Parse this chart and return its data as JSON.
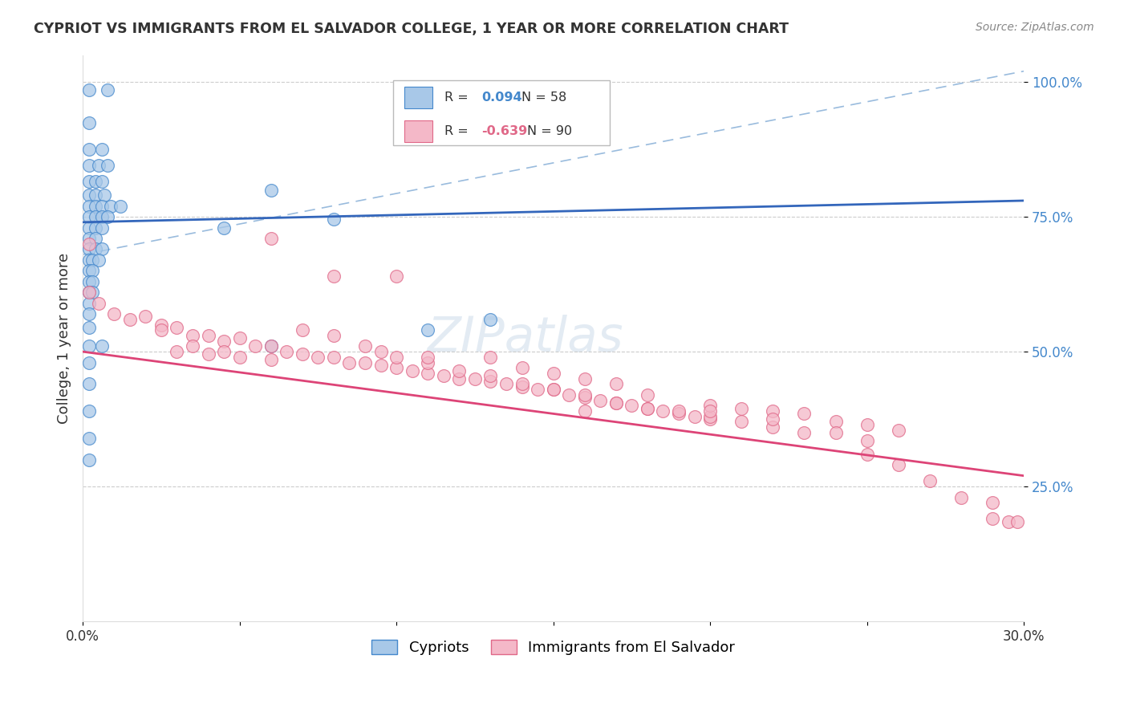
{
  "title": "CYPRIOT VS IMMIGRANTS FROM EL SALVADOR COLLEGE, 1 YEAR OR MORE CORRELATION CHART",
  "source_text": "Source: ZipAtlas.com",
  "ylabel": "College, 1 year or more",
  "legend_label1": "Cypriots",
  "legend_label2": "Immigrants from El Salvador",
  "r1": 0.094,
  "n1": 58,
  "r2": -0.639,
  "n2": 90,
  "xlim": [
    0.0,
    0.3
  ],
  "ylim": [
    0.0,
    1.05
  ],
  "yticks": [
    0.25,
    0.5,
    0.75,
    1.0
  ],
  "ytick_labels": [
    "25.0%",
    "50.0%",
    "75.0%",
    "100.0%"
  ],
  "xticks": [
    0.0,
    0.05,
    0.1,
    0.15,
    0.2,
    0.25,
    0.3
  ],
  "xtick_labels": [
    "0.0%",
    "",
    "",
    "",
    "",
    "",
    "30.0%"
  ],
  "color_blue": "#a8c8e8",
  "color_pink": "#f4b8c8",
  "edge_blue": "#4488cc",
  "edge_pink": "#e06888",
  "line_blue": "#3366bb",
  "line_pink": "#dd4477",
  "line_dashed_color": "#99bbdd",
  "ytick_color": "#4488cc",
  "watermark": "ZIPatlas",
  "blue_points": [
    [
      0.002,
      0.985
    ],
    [
      0.008,
      0.985
    ],
    [
      0.002,
      0.925
    ],
    [
      0.002,
      0.875
    ],
    [
      0.006,
      0.875
    ],
    [
      0.002,
      0.845
    ],
    [
      0.005,
      0.845
    ],
    [
      0.008,
      0.845
    ],
    [
      0.002,
      0.815
    ],
    [
      0.004,
      0.815
    ],
    [
      0.006,
      0.815
    ],
    [
      0.002,
      0.79
    ],
    [
      0.004,
      0.79
    ],
    [
      0.007,
      0.79
    ],
    [
      0.002,
      0.77
    ],
    [
      0.004,
      0.77
    ],
    [
      0.006,
      0.77
    ],
    [
      0.009,
      0.77
    ],
    [
      0.012,
      0.77
    ],
    [
      0.002,
      0.75
    ],
    [
      0.004,
      0.75
    ],
    [
      0.006,
      0.75
    ],
    [
      0.008,
      0.75
    ],
    [
      0.002,
      0.73
    ],
    [
      0.004,
      0.73
    ],
    [
      0.006,
      0.73
    ],
    [
      0.002,
      0.71
    ],
    [
      0.004,
      0.71
    ],
    [
      0.002,
      0.69
    ],
    [
      0.004,
      0.69
    ],
    [
      0.006,
      0.69
    ],
    [
      0.002,
      0.67
    ],
    [
      0.003,
      0.67
    ],
    [
      0.005,
      0.67
    ],
    [
      0.002,
      0.65
    ],
    [
      0.003,
      0.65
    ],
    [
      0.002,
      0.63
    ],
    [
      0.003,
      0.63
    ],
    [
      0.002,
      0.61
    ],
    [
      0.003,
      0.61
    ],
    [
      0.002,
      0.59
    ],
    [
      0.002,
      0.57
    ],
    [
      0.002,
      0.545
    ],
    [
      0.002,
      0.51
    ],
    [
      0.006,
      0.51
    ],
    [
      0.002,
      0.48
    ],
    [
      0.002,
      0.44
    ],
    [
      0.002,
      0.39
    ],
    [
      0.002,
      0.34
    ],
    [
      0.06,
      0.8
    ],
    [
      0.08,
      0.745
    ],
    [
      0.045,
      0.73
    ],
    [
      0.06,
      0.51
    ],
    [
      0.11,
      0.54
    ],
    [
      0.13,
      0.56
    ],
    [
      0.002,
      0.3
    ]
  ],
  "pink_points": [
    [
      0.002,
      0.7
    ],
    [
      0.002,
      0.61
    ],
    [
      0.005,
      0.59
    ],
    [
      0.01,
      0.57
    ],
    [
      0.015,
      0.56
    ],
    [
      0.02,
      0.565
    ],
    [
      0.025,
      0.55
    ],
    [
      0.03,
      0.545
    ],
    [
      0.035,
      0.53
    ],
    [
      0.04,
      0.53
    ],
    [
      0.045,
      0.52
    ],
    [
      0.05,
      0.525
    ],
    [
      0.055,
      0.51
    ],
    [
      0.06,
      0.51
    ],
    [
      0.065,
      0.5
    ],
    [
      0.07,
      0.495
    ],
    [
      0.075,
      0.49
    ],
    [
      0.08,
      0.49
    ],
    [
      0.085,
      0.48
    ],
    [
      0.09,
      0.48
    ],
    [
      0.095,
      0.475
    ],
    [
      0.1,
      0.47
    ],
    [
      0.105,
      0.465
    ],
    [
      0.11,
      0.46
    ],
    [
      0.115,
      0.455
    ],
    [
      0.12,
      0.45
    ],
    [
      0.125,
      0.45
    ],
    [
      0.13,
      0.445
    ],
    [
      0.135,
      0.44
    ],
    [
      0.14,
      0.435
    ],
    [
      0.145,
      0.43
    ],
    [
      0.15,
      0.43
    ],
    [
      0.155,
      0.42
    ],
    [
      0.16,
      0.415
    ],
    [
      0.165,
      0.41
    ],
    [
      0.17,
      0.405
    ],
    [
      0.175,
      0.4
    ],
    [
      0.18,
      0.395
    ],
    [
      0.185,
      0.39
    ],
    [
      0.19,
      0.385
    ],
    [
      0.195,
      0.38
    ],
    [
      0.2,
      0.375
    ],
    [
      0.03,
      0.5
    ],
    [
      0.04,
      0.495
    ],
    [
      0.05,
      0.49
    ],
    [
      0.06,
      0.485
    ],
    [
      0.025,
      0.54
    ],
    [
      0.035,
      0.51
    ],
    [
      0.045,
      0.5
    ],
    [
      0.07,
      0.54
    ],
    [
      0.08,
      0.53
    ],
    [
      0.09,
      0.51
    ],
    [
      0.095,
      0.5
    ],
    [
      0.1,
      0.49
    ],
    [
      0.11,
      0.48
    ],
    [
      0.12,
      0.465
    ],
    [
      0.13,
      0.455
    ],
    [
      0.14,
      0.44
    ],
    [
      0.15,
      0.43
    ],
    [
      0.16,
      0.42
    ],
    [
      0.17,
      0.405
    ],
    [
      0.18,
      0.395
    ],
    [
      0.06,
      0.71
    ],
    [
      0.08,
      0.64
    ],
    [
      0.1,
      0.64
    ],
    [
      0.11,
      0.49
    ],
    [
      0.13,
      0.49
    ],
    [
      0.14,
      0.47
    ],
    [
      0.15,
      0.46
    ],
    [
      0.16,
      0.45
    ],
    [
      0.17,
      0.44
    ],
    [
      0.18,
      0.42
    ],
    [
      0.19,
      0.39
    ],
    [
      0.2,
      0.38
    ],
    [
      0.21,
      0.37
    ],
    [
      0.22,
      0.36
    ],
    [
      0.23,
      0.35
    ],
    [
      0.2,
      0.4
    ],
    [
      0.21,
      0.395
    ],
    [
      0.22,
      0.39
    ],
    [
      0.23,
      0.385
    ],
    [
      0.24,
      0.37
    ],
    [
      0.25,
      0.365
    ],
    [
      0.26,
      0.355
    ],
    [
      0.16,
      0.39
    ],
    [
      0.2,
      0.39
    ],
    [
      0.22,
      0.375
    ],
    [
      0.24,
      0.35
    ],
    [
      0.25,
      0.335
    ],
    [
      0.25,
      0.31
    ],
    [
      0.26,
      0.29
    ],
    [
      0.27,
      0.26
    ],
    [
      0.28,
      0.23
    ],
    [
      0.29,
      0.22
    ],
    [
      0.29,
      0.19
    ],
    [
      0.295,
      0.185
    ],
    [
      0.298,
      0.185
    ]
  ],
  "blue_trend": [
    0.0,
    0.3,
    0.74,
    0.78
  ],
  "pink_trend": [
    0.0,
    0.3,
    0.5,
    0.27
  ],
  "dashed_line": [
    0.0,
    0.3,
    0.68,
    1.02
  ]
}
